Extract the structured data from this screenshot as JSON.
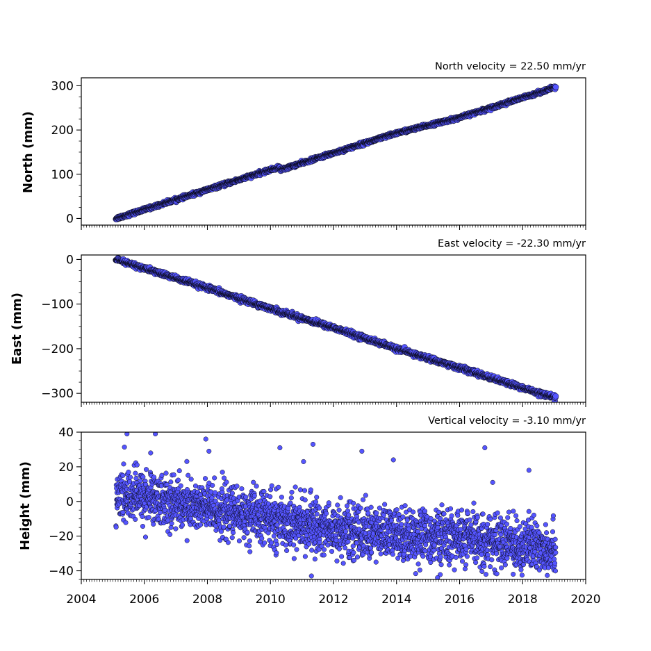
{
  "chart_data": [
    {
      "type": "scatter",
      "title": "North velocity = 22.50 mm/yr",
      "ylabel": "North (mm)",
      "xlabel": "",
      "xlim": [
        2004,
        2020
      ],
      "ylim": [
        -15,
        318
      ],
      "yticks": [
        0,
        100,
        200,
        300
      ],
      "ytick_labels": [
        "0",
        "100",
        "200",
        "300"
      ],
      "grid": false,
      "velocity": 22.5,
      "x_range": [
        2005.1,
        2019.05
      ],
      "start_value": 0,
      "noise": 1.6,
      "offsets": [
        {
          "x": 2010.3,
          "y": -6
        }
      ],
      "marker_color": "#5555ff",
      "marker_edge": "#000000",
      "series": [
        {
          "values_desc": "",
          "points": [
            [
              2005.1,
              0
            ],
            [
              2006.0,
              20
            ],
            [
              2008.0,
              65
            ],
            [
              2010.0,
              110
            ],
            [
              2010.3,
              116
            ],
            [
              2010.32,
              110
            ],
            [
              2012.0,
              148
            ],
            [
              2014.0,
              193
            ],
            [
              2016.0,
              228
            ],
            [
              2018.0,
              273
            ],
            [
              2019.05,
              297
            ]
          ]
        }
      ]
    },
    {
      "type": "scatter",
      "title": "East velocity = -22.30 mm/yr",
      "ylabel": "East (mm)",
      "xlabel": "",
      "xlim": [
        2004,
        2020
      ],
      "ylim": [
        -320,
        10
      ],
      "yticks": [
        -300,
        -200,
        -100,
        0
      ],
      "ytick_labels": [
        "−300",
        "−200",
        "−100",
        "0"
      ],
      "grid": false,
      "velocity": -22.3,
      "x_range": [
        2005.1,
        2019.05
      ],
      "start_value": 0,
      "noise": 2.5,
      "offsets": [],
      "marker_color": "#5555ff",
      "marker_edge": "#000000",
      "series": [
        {
          "values_desc": "",
          "points": [
            [
              2005.1,
              0
            ],
            [
              2006.0,
              -20
            ],
            [
              2008.0,
              -64
            ],
            [
              2010.0,
              -110
            ],
            [
              2012.0,
              -153
            ],
            [
              2014.0,
              -200
            ],
            [
              2016.0,
              -243
            ],
            [
              2018.0,
              -288
            ],
            [
              2019.05,
              -310
            ]
          ]
        }
      ]
    },
    {
      "type": "scatter",
      "title": "Vertical velocity = -3.10 mm/yr",
      "ylabel": "Height (mm)",
      "xlabel": "",
      "xlim": [
        2004,
        2020
      ],
      "ylim": [
        -45,
        40
      ],
      "yticks": [
        -40,
        -20,
        0,
        20,
        40
      ],
      "ytick_labels": [
        "−40",
        "−20",
        "0",
        "20",
        "40"
      ],
      "xticks": [
        2004,
        2006,
        2008,
        2010,
        2012,
        2014,
        2016,
        2018,
        2020
      ],
      "xtick_labels": [
        "2004",
        "2006",
        "2008",
        "2010",
        "2012",
        "2014",
        "2016",
        "2018",
        "2020"
      ],
      "grid": false,
      "velocity": -3.1,
      "x_range": [
        2005.1,
        2019.05
      ],
      "start_value": 3,
      "noise": 7.5,
      "offsets": [],
      "marker_color": "#5555ff",
      "marker_edge": "#000000",
      "outliers": [
        [
          2005.45,
          39
        ],
        [
          2006.35,
          39
        ],
        [
          2007.95,
          36
        ],
        [
          2006.2,
          28
        ],
        [
          2008.05,
          29
        ],
        [
          2010.3,
          31
        ],
        [
          2011.35,
          33
        ],
        [
          2012.9,
          29
        ],
        [
          2016.8,
          31
        ],
        [
          2013.9,
          24
        ],
        [
          2011.05,
          23
        ],
        [
          2018.2,
          18
        ],
        [
          2017.05,
          11
        ],
        [
          2011.3,
          -43
        ],
        [
          2015.3,
          -44
        ],
        [
          2017.7,
          -42
        ],
        [
          2009.35,
          -29
        ],
        [
          2013.35,
          -35
        ]
      ],
      "series": [
        {
          "values_desc": "",
          "points": [
            [
              2005.1,
              3
            ],
            [
              2006.0,
              3
            ],
            [
              2008.0,
              -4
            ],
            [
              2010.0,
              -10
            ],
            [
              2012.0,
              -16
            ],
            [
              2014.0,
              -19
            ],
            [
              2016.0,
              -21
            ],
            [
              2018.0,
              -25
            ],
            [
              2019.05,
              -27
            ]
          ]
        }
      ]
    }
  ]
}
